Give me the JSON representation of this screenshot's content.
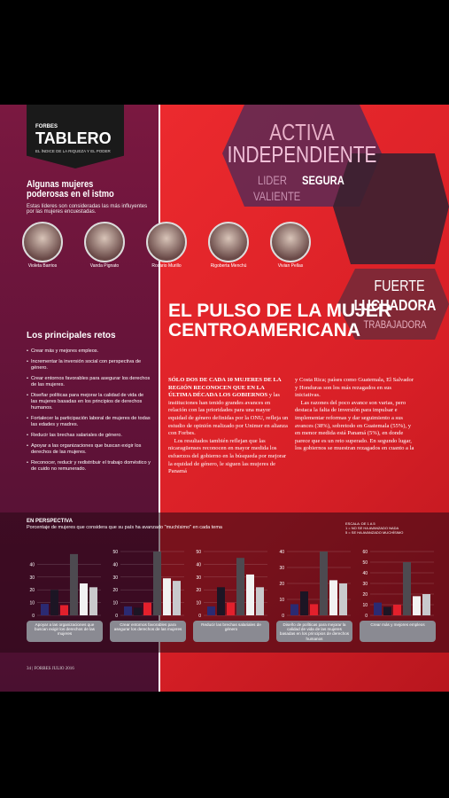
{
  "header": {
    "brand": "FORBES",
    "section": "TABLERO",
    "tagline": "EL ÍNDICE DE LA RIQUEZA Y EL PODER"
  },
  "women": {
    "title": "Algunas mujeres poderosas en el istmo",
    "subtitle": "Estas líderes son consideradas las más influyentes por  las mujeres encuestadas.",
    "names": [
      "Violeta Barrios",
      "Vanda Pignato",
      "Rosario Murillo",
      "Rigoberta Menchú",
      "Vivian Pellas"
    ]
  },
  "challenges": {
    "title": "Los principales retos",
    "items": [
      "Crear más y mejores empleos.",
      "Incrementar la inversión social con perspectiva de género.",
      "Crear entornos favorables para asegurar los derechos de las mujeres.",
      "Diseñar políticas para mejorar la calidad de vida de las mujeres basadas en los principios de derechos humanos.",
      "Fortalecer la participación laboral de mujeres de todas las edades y madres.",
      "Reducir las brechas salariales de género.",
      "Apoyar a las organizaciones que buscan exigir los derechos de las mujeres.",
      "Reconocer, reducir y redistribuir el trabajo doméstico y de cuido no remunerado."
    ]
  },
  "hero": {
    "words": [
      "ACTIVA",
      "INDEPENDIENTE",
      "LIDER",
      "SEGURA",
      "VALIENTE",
      "FUERTE",
      "LUCHADORA",
      "TRABAJADORA"
    ]
  },
  "article": {
    "title": "EL PULSO DE LA MUJER CENTROAMERICANA",
    "lead": "SÓLO DOS DE CADA 10 MUJERES DE LA REGIÓN RECONOCEN QUE EN LA ÚLTIMA DÉCADA LOS GOBIERNOS",
    "columns": [
      "y las instituciones han tenido grandes avances en relación con las prioridades para una mayor equidad de género definidas por la ONU, refleja un estudio de opinión realizado por Unimer en alianza con Forbes.\n Los resultados también reflejan que las nicaragüenses reconocen en mayor medida los esfuerzos del gobierno en la búsqueda por mejorar la equidad de género, le siguen las mujeres de Panamá",
      "y Costa Rica; países como Guatemala, El Salvador y Honduras son los más rezagados en sus iniciativas.\n Las razones del poco avance son varias, pero destaca la falta de inversión para impulsar e implementar reformas y dar seguimiento a sus avances (38%), sobretodo en Guatemala (55%), y en menor medida está Panamá (5%), en donde parece que es un reto superado. En segundo lugar, los gobiernos se muestran rezagados en cuanto a la"
    ]
  },
  "perspective": {
    "title": "EN PERSPECTIVA",
    "subtitle": "Porcentaje de mujeres que considera que su país ha avanzado \"muchísimo\" en cada tema",
    "scale": [
      "ESCALA: DE 1 A 5",
      "1 = NO SE HA AVANZADO NADA",
      "5 = SE HA AVANZADO MUCHÍSIMO"
    ],
    "colors": [
      "#2b2a72",
      "#1c1524",
      "#e3202c",
      "#4d4a50",
      "#f2f2f2",
      "#c9c9cc"
    ],
    "charts": [
      {
        "ylim": [
          0,
          50
        ],
        "yticks": [
          0,
          10,
          20,
          30,
          40
        ],
        "values": [
          9,
          20,
          8,
          48,
          25,
          22
        ],
        "label": "Apoyar a las organizaciones que buscan exigir los derechos de las mujeres"
      },
      {
        "ylim": [
          0,
          50
        ],
        "yticks": [
          0,
          10,
          20,
          30,
          40,
          50
        ],
        "values": [
          7,
          6,
          10,
          50,
          29,
          27
        ],
        "label": "Crear entornos favorables para asegurar los derechos de las mujeres"
      },
      {
        "ylim": [
          0,
          50
        ],
        "yticks": [
          0,
          10,
          20,
          30,
          40,
          50
        ],
        "values": [
          7,
          22,
          10,
          45,
          32,
          22
        ],
        "label": "Reducir las brechas salariales de género"
      },
      {
        "ylim": [
          0,
          40
        ],
        "yticks": [
          0,
          10,
          20,
          30,
          40
        ],
        "values": [
          7,
          15,
          7,
          40,
          22,
          20
        ],
        "label": "Diseño de políticas para mejorar la calidad de vida de las mujeres basadas en los principios de derechos humanos"
      },
      {
        "ylim": [
          0,
          60
        ],
        "yticks": [
          0,
          10,
          20,
          30,
          40,
          50,
          60
        ],
        "values": [
          12,
          8,
          10,
          50,
          18,
          20
        ],
        "label": "Crear más y mejores empleos"
      }
    ]
  },
  "footer": {
    "page": "34 | FORBES   JULIO 2016"
  }
}
